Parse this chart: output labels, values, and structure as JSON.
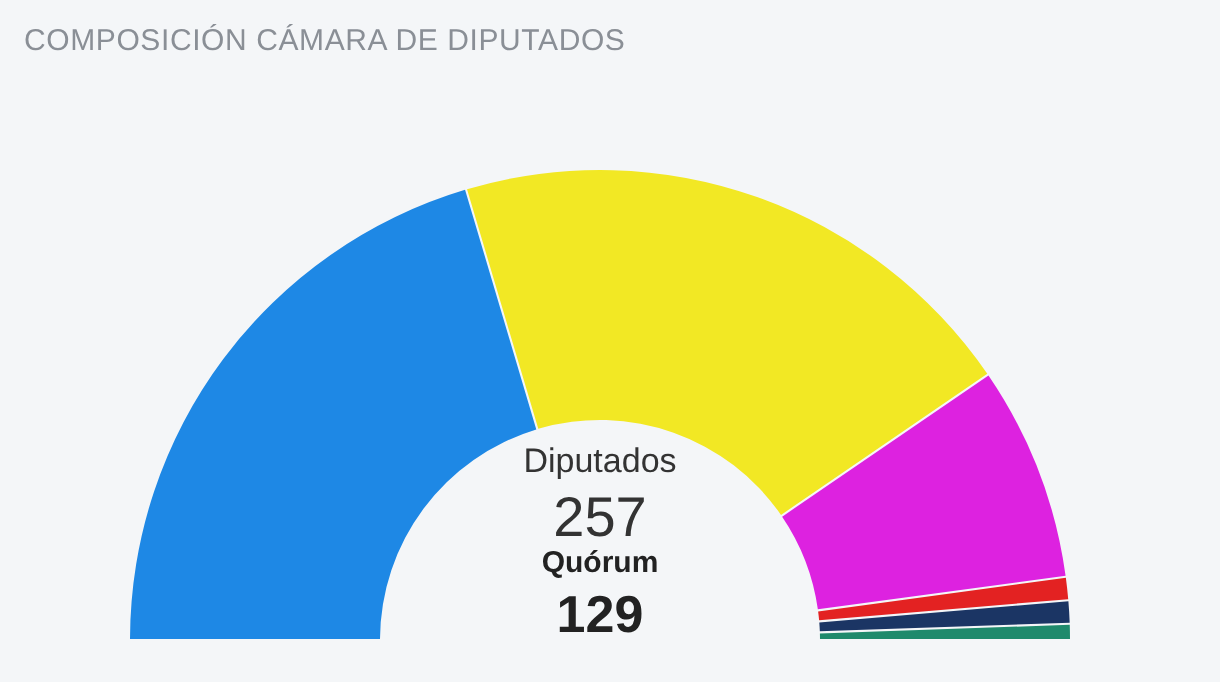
{
  "chart_data": {
    "type": "donut",
    "title": "COMPOSICIÓN CÁMARA DE DIPUTADOS",
    "categories": [
      null,
      null,
      null,
      null,
      null,
      null
    ],
    "values": [
      40.8,
      40.1,
      14.8,
      1.6,
      1.6,
      1.1
    ],
    "colors": [
      "#1e88e5",
      "#f2e824",
      "#dd22e0",
      "#e32222",
      "#1b3564",
      "#1f8a6c"
    ],
    "annotations": [
      "Diputados",
      "257",
      "Quórum",
      "129"
    ]
  }
}
